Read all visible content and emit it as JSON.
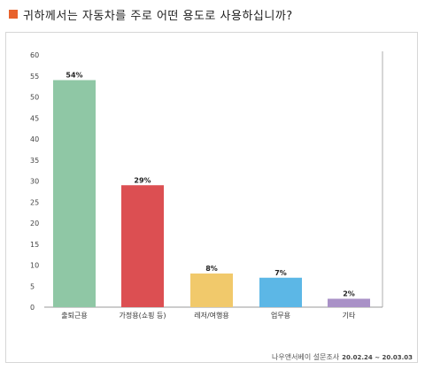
{
  "title": "귀하께서는 자동차를 주로 어떤 용도로 사용하십니까?",
  "accent_color": "#e8622c",
  "footer": {
    "source": "나우앤서베이 설문조사",
    "dates": "20.02.24 ~ 20.03.03"
  },
  "chart_data": {
    "type": "bar",
    "categories": [
      "출퇴근용",
      "가정용(쇼핑 등)",
      "레저/여행용",
      "업무용",
      "기타"
    ],
    "values": [
      54,
      29,
      8,
      7,
      2
    ],
    "value_labels": [
      "54%",
      "29%",
      "8%",
      "7%",
      "2%"
    ],
    "colors": [
      "#8fc7a5",
      "#dc4f52",
      "#f1c96b",
      "#5cb7e6",
      "#a991c7"
    ],
    "yticks": [
      "0",
      "5",
      "10",
      "15",
      "20",
      "25",
      "30",
      "35",
      "40",
      "45",
      "50",
      "55",
      "60"
    ],
    "ylim": [
      0,
      60
    ],
    "grid": false,
    "xlabel": "",
    "ylabel": ""
  }
}
